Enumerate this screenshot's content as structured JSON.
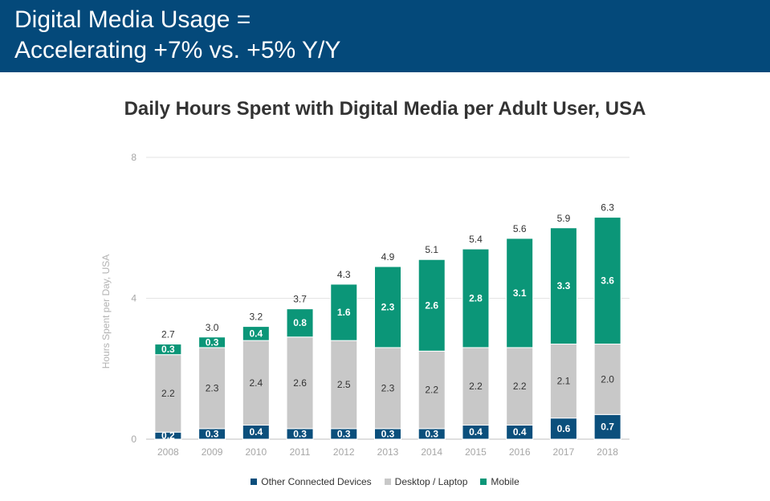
{
  "header": {
    "line1": "Digital Media Usage =",
    "line2": "Accelerating +7% vs. +5% Y/Y"
  },
  "colors": {
    "header_bg": "#04497a",
    "other_connected": "#0b4f7c",
    "desktop": "#c8c8c8",
    "mobile": "#0b9678"
  },
  "chart_data": {
    "type": "bar",
    "stacked": true,
    "title": "Daily Hours Spent with Digital Media per Adult User, USA",
    "xlabel": "",
    "ylabel": "Hours Spent per Day, USA",
    "ylim": [
      0,
      8
    ],
    "yticks": [
      "0",
      "4",
      "8"
    ],
    "grid": true,
    "legend_position": "bottom",
    "categories": [
      "2008",
      "2009",
      "2010",
      "2011",
      "2012",
      "2013",
      "2014",
      "2015",
      "2016",
      "2017",
      "2018"
    ],
    "series": [
      {
        "name": "Other Connected Devices",
        "color": "#0b4f7c",
        "values": [
          0.2,
          0.3,
          0.4,
          0.3,
          0.3,
          0.3,
          0.3,
          0.4,
          0.4,
          0.6,
          0.7
        ]
      },
      {
        "name": "Desktop / Laptop",
        "color": "#c8c8c8",
        "values": [
          2.2,
          2.3,
          2.4,
          2.6,
          2.5,
          2.3,
          2.2,
          2.2,
          2.2,
          2.1,
          2.0
        ]
      },
      {
        "name": "Mobile",
        "color": "#0b9678",
        "values": [
          0.3,
          0.3,
          0.4,
          0.8,
          1.6,
          2.3,
          2.6,
          2.8,
          3.1,
          3.3,
          3.6
        ]
      }
    ],
    "totals": [
      "2.7",
      "3.0",
      "3.2",
      "3.7",
      "4.3",
      "4.9",
      "5.1",
      "5.4",
      "5.6",
      "5.9",
      "6.3"
    ]
  }
}
